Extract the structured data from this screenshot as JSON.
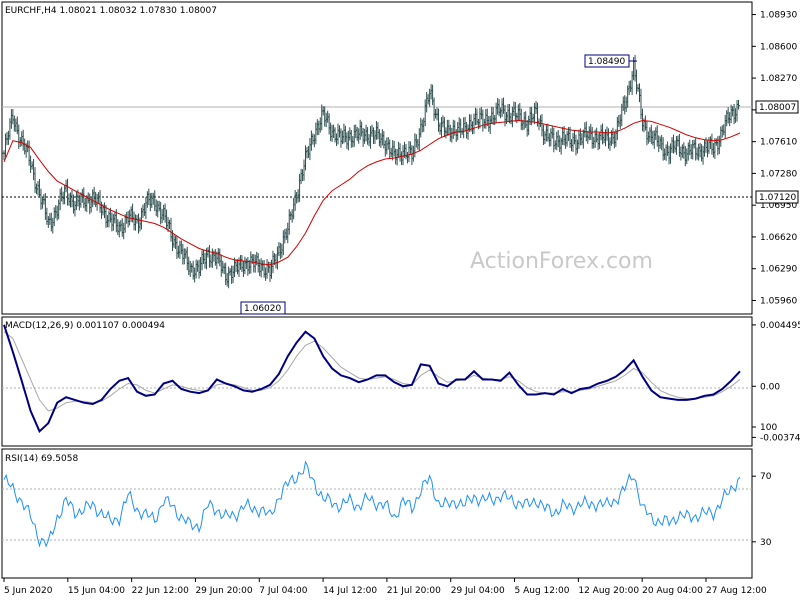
{
  "chart_data": [
    {
      "type": "candlestick",
      "title": "EURCHF,H4  1.08021 1.08032 1.07830 1.08007",
      "y_ticks": [
        "1.08930",
        "1.08600",
        "1.08270",
        "1.07940",
        "1.07610",
        "1.07280",
        "1.06950",
        "1.06620",
        "1.06290",
        "1.05960"
      ],
      "ylim": [
        1.0583,
        1.0905
      ],
      "current_price": "1.08007",
      "current_value": 1.08007,
      "hline_label": "1.07120",
      "hline_value": 1.0712,
      "annotations": [
        {
          "text": "1.06020",
          "value": 1.0602
        },
        {
          "text": "1.08490",
          "value": 1.0849
        }
      ],
      "close_series": [
        1.0749,
        1.0788,
        1.076,
        1.074,
        1.0705,
        1.0677,
        1.069,
        1.0712,
        1.0694,
        1.0702,
        1.07,
        1.0694,
        1.0678,
        1.0672,
        1.0682,
        1.0677,
        1.0696,
        1.07,
        1.0683,
        1.0662,
        1.0644,
        1.0631,
        1.0628,
        1.0646,
        1.0638,
        1.0624,
        1.0626,
        1.0636,
        1.0633,
        1.0634,
        1.0624,
        1.065,
        1.0668,
        1.0709,
        1.0741,
        1.0772,
        1.0787,
        1.0773,
        1.0763,
        1.0768,
        1.0767,
        1.077,
        1.0766,
        1.0762,
        1.0744,
        1.0753,
        1.0745,
        1.0777,
        1.081,
        1.0783,
        1.0768,
        1.0777,
        1.077,
        1.0787,
        1.078,
        1.0788,
        1.0793,
        1.0791,
        1.0786,
        1.0782,
        1.0789,
        1.077,
        1.0759,
        1.0767,
        1.0758,
        1.0767,
        1.0766,
        1.0767,
        1.0762,
        1.0771,
        1.0799,
        1.084,
        1.078,
        1.0767,
        1.0757,
        1.0751,
        1.0757,
        1.0749,
        1.0752,
        1.0754,
        1.0754,
        1.0772,
        1.079,
        1.0801
      ],
      "ma_series": [
        1.074,
        1.0762,
        1.076,
        1.0755,
        1.0742,
        1.073,
        1.072,
        1.0715,
        1.071,
        1.0705,
        1.07,
        1.0695,
        1.069,
        1.0686,
        1.0682,
        1.068,
        1.0678,
        1.0676,
        1.0672,
        1.0666,
        1.066,
        1.0655,
        1.065,
        1.0647,
        1.0645,
        1.0641,
        1.0638,
        1.0637,
        1.0636,
        1.0634,
        1.0633,
        1.0636,
        1.0641,
        1.0652,
        1.0666,
        1.0684,
        1.07,
        1.071,
        1.0716,
        1.0722,
        1.073,
        1.0736,
        1.074,
        1.0743,
        1.0744,
        1.0746,
        1.0748,
        1.0752,
        1.0758,
        1.0764,
        1.0768,
        1.0771,
        1.0772,
        1.0775,
        1.0778,
        1.078,
        1.0781,
        1.0782,
        1.0783,
        1.0782,
        1.0781,
        1.0779,
        1.0777,
        1.0775,
        1.0773,
        1.0772,
        1.0771,
        1.0771,
        1.077,
        1.0771,
        1.0775,
        1.078,
        1.0783,
        1.0782,
        1.0779,
        1.0776,
        1.0772,
        1.0768,
        1.0765,
        1.0763,
        1.0762,
        1.0763,
        1.0766,
        1.077
      ]
    },
    {
      "type": "line",
      "title": "MACD(12,26,9) 0.001107 0.000494",
      "y_ticks": [
        "0.004495",
        "0.00",
        "-0.003743"
      ],
      "ylim": [
        -0.0043,
        0.005
      ],
      "macd": [
        0.0045,
        0.0025,
        0.0004,
        -0.0018,
        -0.0033,
        -0.0027,
        -0.0012,
        -0.0008,
        -0.001,
        -0.0012,
        -0.0013,
        -0.001,
        -0.0002,
        0.0004,
        0.0006,
        -0.0004,
        -0.0007,
        -0.0006,
        0.0002,
        0.0004,
        -0.0002,
        -0.0004,
        -0.0005,
        -0.0003,
        0.0005,
        0.0002,
        0.0,
        -0.0003,
        -0.0004,
        -0.0002,
        0.0001,
        0.0009,
        0.0022,
        0.0032,
        0.004,
        0.0035,
        0.0022,
        0.0013,
        0.0008,
        0.0006,
        0.0003,
        0.0005,
        0.0008,
        0.0008,
        0.0003,
        0.0,
        0.0001,
        0.0016,
        0.0015,
        0.0002,
        0.0,
        0.0005,
        0.0005,
        0.0011,
        0.0005,
        0.0005,
        0.0004,
        0.001,
        0.0001,
        -0.0006,
        -0.0006,
        -0.0005,
        -0.0006,
        -0.0002,
        -0.0005,
        -0.0002,
        -0.0001,
        0.0002,
        0.0004,
        0.0007,
        0.0012,
        0.0019,
        0.0007,
        -0.0003,
        -0.0008,
        -0.0009,
        -0.001,
        -0.001,
        -0.0009,
        -0.0007,
        -0.0006,
        -0.0002,
        0.0004,
        0.0011
      ],
      "signal": [
        0.004,
        0.0035,
        0.002,
        0.0005,
        -0.001,
        -0.0018,
        -0.0016,
        -0.0012,
        -0.0011,
        -0.0011,
        -0.0012,
        -0.0011,
        -0.0007,
        -0.0002,
        0.0002,
        0.0001,
        -0.0003,
        -0.0005,
        -0.0002,
        0.0001,
        0.0,
        -0.0002,
        -0.0003,
        -0.0003,
        0.0001,
        0.0002,
        0.0001,
        -0.0001,
        -0.0003,
        -0.0003,
        -0.0001,
        0.0004,
        0.0012,
        0.0022,
        0.003,
        0.0033,
        0.0028,
        0.0021,
        0.0014,
        0.001,
        0.0006,
        0.0005,
        0.0006,
        0.0007,
        0.0005,
        0.0002,
        0.0001,
        0.0008,
        0.0012,
        0.0007,
        0.0003,
        0.0004,
        0.0005,
        0.0008,
        0.0006,
        0.0005,
        0.0005,
        0.0007,
        0.0004,
        -0.0001,
        -0.0004,
        -0.0005,
        -0.0005,
        -0.0004,
        -0.0004,
        -0.0003,
        -0.0002,
        0.0,
        0.0002,
        0.0004,
        0.0008,
        0.0013,
        0.001,
        0.0003,
        -0.0003,
        -0.0006,
        -0.0008,
        -0.0009,
        -0.0009,
        -0.0008,
        -0.0007,
        -0.0004,
        0.0,
        0.0005
      ]
    },
    {
      "type": "line",
      "title": "RSI(14) 69.5058",
      "y_ticks": [
        "100",
        "70",
        "30"
      ],
      "ylim": [
        0,
        100
      ],
      "levels": [
        70,
        30
      ],
      "rsi": [
        68,
        62,
        55,
        45,
        32,
        28,
        45,
        55,
        48,
        50,
        52,
        48,
        42,
        45,
        58,
        50,
        46,
        44,
        55,
        52,
        45,
        40,
        40,
        52,
        50,
        45,
        46,
        52,
        50,
        50,
        45,
        58,
        65,
        70,
        75,
        66,
        56,
        54,
        52,
        55,
        52,
        56,
        54,
        52,
        45,
        55,
        50,
        62,
        68,
        54,
        52,
        55,
        52,
        58,
        55,
        56,
        58,
        56,
        54,
        52,
        56,
        50,
        48,
        52,
        50,
        54,
        52,
        54,
        52,
        56,
        62,
        72,
        50,
        45,
        42,
        42,
        46,
        45,
        46,
        47,
        48,
        55,
        62,
        69.5
      ],
      "x_labels": [
        "5 Jun 2020",
        "15 Jun 04:00",
        "22 Jun 12:00",
        "29 Jun 20:00",
        "7 Jul 04:00",
        "14 Jul 12:00",
        "21 Jul 20:00",
        "29 Jul 04:00",
        "5 Aug 12:00",
        "12 Aug 20:00",
        "20 Aug 04:00",
        "27 Aug 12:00"
      ]
    }
  ],
  "watermark": "ActionForex.com",
  "colors": {
    "price_line": "#2f4f4f",
    "moving_average": "#d40000",
    "macd": "#000080",
    "signal": "#a9a9a9",
    "rsi": "#1e90ff",
    "current_price_label_bg": "#ffffff",
    "annotation_border": "#000080"
  }
}
